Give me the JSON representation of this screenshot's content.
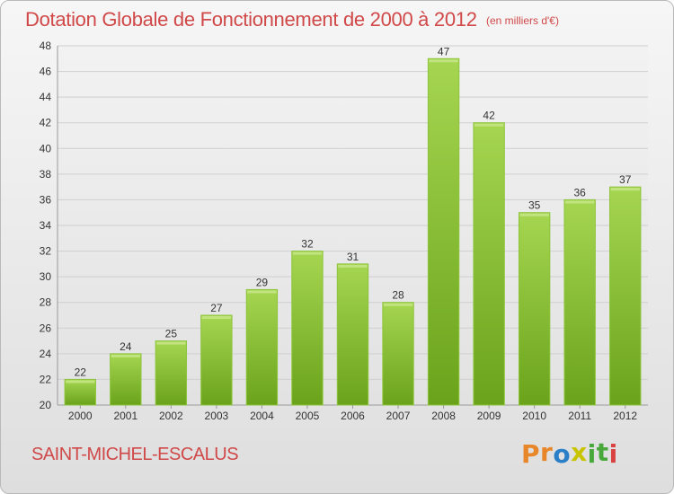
{
  "header": {
    "title": "Dotation Globale de Fonctionnement de 2000 à 2012",
    "unit": "(en milliers d'€)"
  },
  "footer": {
    "place": "SAINT-MICHEL-ESCALUS",
    "logo_letters": [
      "P",
      "r",
      "o",
      "x",
      "i",
      "t",
      "i"
    ],
    "logo_colors": [
      "#e8862a",
      "#e8862a",
      "#2a7fc9",
      "#c8c400",
      "#48a83a",
      "#48a83a",
      "#d94040"
    ]
  },
  "colors": {
    "bar_top": "#a6d651",
    "bar_bottom": "#6aa31b",
    "bar_edge": "#8cc43a",
    "grid": "#cfcfcf",
    "axis_text": "#333333",
    "accent": "#d04848"
  },
  "chart_data": {
    "type": "bar",
    "categories": [
      "2000",
      "2001",
      "2002",
      "2003",
      "2004",
      "2005",
      "2006",
      "2007",
      "2008",
      "2009",
      "2010",
      "2011",
      "2012"
    ],
    "values": [
      22,
      24,
      25,
      27,
      29,
      32,
      31,
      28,
      47,
      42,
      35,
      36,
      37
    ],
    "title": "Dotation Globale de Fonctionnement de 2000 à 2012",
    "subtitle": "(en milliers d'€)",
    "xlabel": "",
    "ylabel": "",
    "ylim": [
      20,
      48
    ],
    "yticks": [
      20,
      22,
      24,
      26,
      28,
      30,
      32,
      34,
      36,
      38,
      40,
      42,
      44,
      46,
      48
    ],
    "grid": true,
    "legend": "none"
  }
}
